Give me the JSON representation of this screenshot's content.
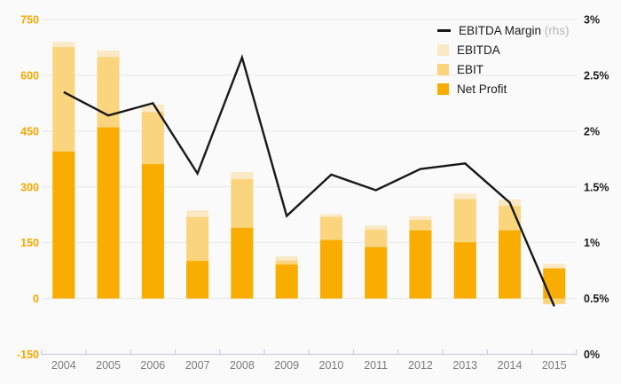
{
  "chart_data": {
    "type": "combo_bar_line",
    "title": "",
    "xlabel": "",
    "ylabel": "",
    "categories": [
      "2004",
      "2005",
      "2006",
      "2007",
      "2008",
      "2009",
      "2010",
      "2011",
      "2012",
      "2013",
      "2014",
      "2015"
    ],
    "series": [
      {
        "name": "EBITDA Margin",
        "type": "line",
        "axis": "right",
        "color": "#181818",
        "unit": "%",
        "values": [
          2.35,
          2.14,
          2.25,
          1.62,
          2.66,
          1.24,
          1.61,
          1.47,
          1.66,
          1.71,
          1.36,
          0.43
        ]
      },
      {
        "name": "EBITDA",
        "type": "bar",
        "axis": "left",
        "color": "#fae9c4",
        "values": [
          690,
          667,
          521,
          237,
          340,
          113,
          227,
          196,
          221,
          282,
          266,
          93
        ]
      },
      {
        "name": "EBIT",
        "type": "bar",
        "axis": "left",
        "color": "#fbd47e",
        "values": [
          676,
          649,
          501,
          219,
          321,
          102,
          219,
          185,
          211,
          267,
          249,
          -15
        ]
      },
      {
        "name": "Net Profit",
        "type": "bar",
        "axis": "left",
        "color": "#f9ad00",
        "values": [
          395,
          460,
          361,
          101,
          190,
          91,
          157,
          138,
          183,
          151,
          183,
          81
        ]
      }
    ],
    "left_axis": {
      "min": -150,
      "max": 750,
      "step": 150,
      "ticks": [
        "750",
        "600",
        "450",
        "300",
        "150",
        "0",
        "-150"
      ],
      "label_color": "#f8a800"
    },
    "right_axis": {
      "min": 0,
      "max": 3,
      "step": 0.5,
      "ticks": [
        "3%",
        "2.5%",
        "2%",
        "1.5%",
        "1%",
        "0.5%",
        "0%"
      ],
      "label_color": "#1a1a1a"
    },
    "legend": [
      {
        "label": "EBITDA Margin",
        "suffix": "(rhs)"
      },
      {
        "label": "EBITDA",
        "suffix": ""
      },
      {
        "label": "EBIT",
        "suffix": ""
      },
      {
        "label": "Net Profit",
        "suffix": ""
      }
    ],
    "legend_position": "top-right",
    "grid": "horizontal",
    "colors": {
      "background": "#fafafa",
      "gridline": "#e8e8e8",
      "axis_line": "#c8cee6",
      "year_label": "#7b7b7b"
    }
  }
}
